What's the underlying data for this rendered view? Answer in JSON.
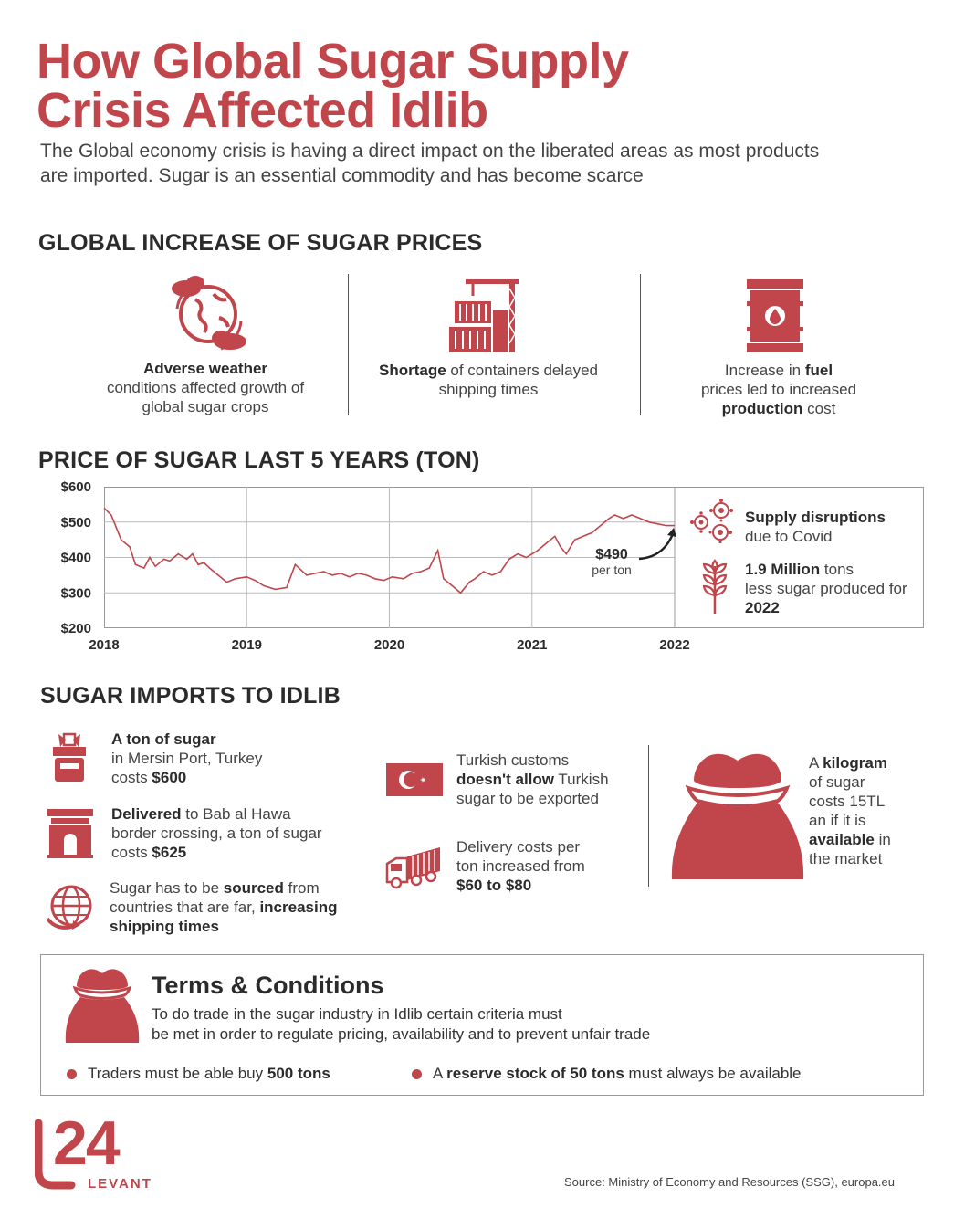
{
  "title_line1": "How Global Sugar Supply",
  "title_line2": "Crisis Affected Idlib",
  "intro": "The Global economy crisis is having a direct impact on the liberated areas as most products are imported. Sugar is an essential commodity and has become scarce",
  "colors": {
    "accent": "#c0464c",
    "text": "#2b2b2b"
  },
  "section1": {
    "heading": "GLOBAL INCREASE OF SUGAR PRICES",
    "causes": [
      {
        "icon": "globe-weather-icon",
        "bold": "Adverse weather",
        "text": "conditions affected growth of global sugar crops"
      },
      {
        "icon": "container-crane-icon",
        "bold": "Shortage",
        "text": "of containers delayed shipping times"
      },
      {
        "icon": "fuel-barrel-icon",
        "pre": "Increase in",
        "bold": "fuel",
        "mid": "prices led to increased",
        "bold2": "production",
        "post": "cost"
      }
    ]
  },
  "section2": {
    "heading": "PRICE OF SUGAR LAST 5 YEARS (TON)",
    "annotation_value": "$490",
    "annotation_unit": "per ton",
    "side": [
      {
        "icon": "virus-icon",
        "bold": "Supply disruptions",
        "text": "due to Covid"
      },
      {
        "icon": "wheat-icon",
        "bold": "1.9 Million",
        "text1": "tons",
        "text2": "less sugar produced for",
        "bold2": "2022"
      }
    ]
  },
  "chart_data": {
    "type": "line",
    "ylim": [
      200,
      600
    ],
    "yticks": [
      "$600",
      "$500",
      "$400",
      "$300",
      "$200"
    ],
    "xticks": [
      "2018",
      "2019",
      "2020",
      "2021",
      "2022"
    ],
    "xlim": [
      2018,
      2022
    ],
    "grid": true,
    "series": [
      {
        "x": [
          2018.0,
          2018.05,
          2018.12,
          2018.18,
          2018.22,
          2018.28,
          2018.32,
          2018.36,
          2018.42,
          2018.46,
          2018.52,
          2018.58,
          2018.62,
          2018.66,
          2018.7,
          2018.74,
          2018.8,
          2018.86,
          2018.92,
          2019.0,
          2019.06,
          2019.12,
          2019.2,
          2019.28,
          2019.34,
          2019.38,
          2019.42,
          2019.48,
          2019.54,
          2019.6,
          2019.66,
          2019.72,
          2019.78,
          2019.84,
          2019.9,
          2019.96,
          2020.02,
          2020.1,
          2020.16,
          2020.22,
          2020.28,
          2020.34,
          2020.38,
          2020.44,
          2020.5,
          2020.56,
          2020.6,
          2020.66,
          2020.72,
          2020.78,
          2020.84,
          2020.9,
          2020.96,
          2021.04,
          2021.1,
          2021.16,
          2021.2,
          2021.24,
          2021.3,
          2021.36,
          2021.42,
          2021.48,
          2021.54,
          2021.58,
          2021.64,
          2021.7,
          2021.76,
          2021.82,
          2021.88,
          2021.94,
          2022.0
        ],
        "y": [
          540,
          520,
          450,
          430,
          380,
          370,
          400,
          375,
          395,
          390,
          410,
          395,
          410,
          380,
          385,
          370,
          350,
          330,
          340,
          345,
          335,
          320,
          310,
          315,
          380,
          365,
          350,
          355,
          360,
          350,
          355,
          345,
          355,
          350,
          340,
          335,
          345,
          340,
          355,
          360,
          370,
          420,
          340,
          320,
          300,
          330,
          340,
          360,
          350,
          360,
          395,
          410,
          400,
          420,
          440,
          460,
          430,
          410,
          450,
          460,
          470,
          490,
          510,
          520,
          510,
          520,
          510,
          500,
          495,
          490,
          490
        ]
      }
    ]
  },
  "section3": {
    "heading": "SUGAR IMPORTS TO IDLIB",
    "items": [
      {
        "icon": "sugar-gift-icon",
        "bold": "A ton of sugar",
        "text": "in Mersin Port, Turkey",
        "pre2": "costs",
        "bold2": "$600"
      },
      {
        "icon": "border-gate-icon",
        "bold": "Delivered",
        "text": "to Bab al Hawa",
        "text2": "border crossing, a ton of sugar",
        "pre3": "costs",
        "bold3": "$625"
      },
      {
        "icon": "globe-arrow-icon",
        "pre": "Sugar has to be",
        "bold": "sourced",
        "post": "from",
        "pre2": "countries that are far,",
        "bold2": "increasing",
        "bold3": "shipping times"
      },
      {
        "icon": "turkey-flag-icon",
        "text": "Turkish customs",
        "bold": "doesn't allow",
        "post": "Turkish",
        "text2": "sugar to be exported"
      },
      {
        "icon": "truck-icon",
        "text": "Delivery costs per",
        "text2": "ton increased from",
        "bold": "$60 to $80"
      },
      {
        "icon": "sugar-sack-icon",
        "pre": "A",
        "bold": "kilogram",
        "text1": "of sugar",
        "text2": "costs 15TL",
        "text3": "an if it is",
        "bold2": "available",
        "post2": "in",
        "text4": "the market"
      }
    ]
  },
  "terms": {
    "heading": "Terms & Conditions",
    "body_line1": "To do trade in the sugar industry in Idlib certain criteria must",
    "body_line2": "be met in order to regulate pricing, availability and to prevent unfair trade",
    "bullet1_pre": "Traders must be able buy",
    "bullet1_bold": "500 tons",
    "bullet2_pre": "A",
    "bullet2_bold": "reserve stock of 50 tons",
    "bullet2_post": "must always be available"
  },
  "logo": {
    "number": "24",
    "name": "LEVANT"
  },
  "source": "Source: Ministry of Economy and Resources (SSG), europa.eu"
}
